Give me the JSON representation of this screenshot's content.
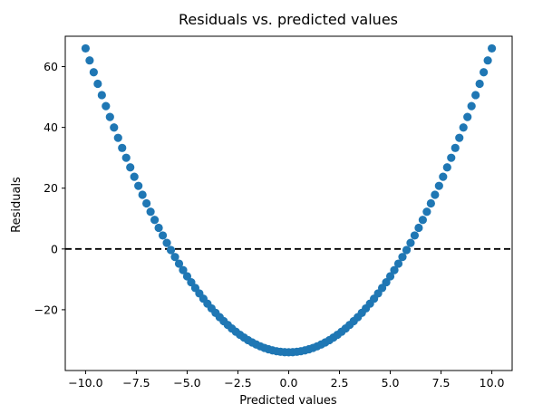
{
  "chart_data": {
    "type": "scatter",
    "title": "Residuals vs. predicted values",
    "xlabel": "Predicted values",
    "ylabel": "Residuals",
    "xlim": [
      -11.0,
      11.0
    ],
    "ylim": [
      -40.0,
      70.0
    ],
    "xticks": [
      -10.0,
      -7.5,
      -5.0,
      -2.5,
      0.0,
      2.5,
      5.0,
      7.5,
      10.0
    ],
    "xtick_labels": [
      "−10.0",
      "−7.5",
      "−5.0",
      "−2.5",
      "0.0",
      "2.5",
      "5.0",
      "7.5",
      "10.0"
    ],
    "yticks": [
      -20,
      0,
      20,
      40,
      60
    ],
    "ytick_labels": [
      "−20",
      "0",
      "20",
      "40",
      "60"
    ],
    "grid": false,
    "reference_line": {
      "y": 0,
      "style": "dashed",
      "color": "#000000"
    },
    "marker_color": "#1f77b4",
    "series": [
      {
        "x": [
          -10.0,
          -9.8,
          -9.6,
          -9.4,
          -9.2,
          -9.0,
          -8.8,
          -8.6,
          -8.4,
          -8.2,
          -8.0,
          -7.8,
          -7.6,
          -7.4,
          -7.2,
          -7.0,
          -6.8,
          -6.6,
          -6.4,
          -6.2,
          -6.0,
          -5.8,
          -5.6,
          -5.4,
          -5.2,
          -5.0,
          -4.8,
          -4.6,
          -4.4,
          -4.2,
          -4.0,
          -3.8,
          -3.6,
          -3.4,
          -3.2,
          -3.0,
          -2.8,
          -2.6,
          -2.4,
          -2.2,
          -2.0,
          -1.8,
          -1.6,
          -1.4,
          -1.2,
          -1.0,
          -0.8,
          -0.6,
          -0.4,
          -0.2,
          0.0,
          0.2,
          0.4,
          0.6,
          0.8,
          1.0,
          1.2,
          1.4,
          1.6,
          1.8,
          2.0,
          2.2,
          2.4,
          2.6,
          2.8,
          3.0,
          3.2,
          3.4,
          3.6,
          3.8,
          4.0,
          4.2,
          4.4,
          4.6,
          4.8,
          5.0,
          5.2,
          5.4,
          5.6,
          5.8,
          6.0,
          6.2,
          6.4,
          6.6,
          6.8,
          7.0,
          7.2,
          7.4,
          7.6,
          7.8,
          8.0,
          8.2,
          8.4,
          8.6,
          8.8,
          9.0,
          9.2,
          9.4,
          9.6,
          9.8,
          10.0
        ],
        "y": [
          66.0,
          62.04,
          58.16,
          54.36,
          50.64,
          47.0,
          43.44,
          39.96,
          36.56,
          33.24,
          30.0,
          26.84,
          23.76,
          20.76,
          17.84,
          15.0,
          12.24,
          9.56,
          6.96,
          4.44,
          2.0,
          -0.36,
          -2.64,
          -4.84,
          -6.96,
          -9.0,
          -10.96,
          -12.84,
          -14.64,
          -16.36,
          -18.0,
          -19.56,
          -21.04,
          -22.44,
          -23.76,
          -25.0,
          -26.16,
          -27.24,
          -28.24,
          -29.16,
          -30.0,
          -30.76,
          -31.44,
          -32.04,
          -32.56,
          -33.0,
          -33.36,
          -33.64,
          -33.84,
          -33.96,
          -34.0,
          -33.96,
          -33.84,
          -33.64,
          -33.36,
          -33.0,
          -32.56,
          -32.04,
          -31.44,
          -30.76,
          -30.0,
          -29.16,
          -28.24,
          -27.24,
          -26.16,
          -25.0,
          -23.76,
          -22.44,
          -21.04,
          -19.56,
          -18.0,
          -16.36,
          -14.64,
          -12.84,
          -10.96,
          -9.0,
          -6.96,
          -4.84,
          -2.64,
          -0.36,
          2.0,
          4.44,
          6.96,
          9.56,
          12.24,
          15.0,
          17.84,
          20.76,
          23.76,
          26.84,
          30.0,
          33.24,
          36.56,
          39.96,
          43.44,
          47.0,
          50.64,
          54.36,
          58.16,
          62.04,
          66.0
        ]
      }
    ]
  }
}
